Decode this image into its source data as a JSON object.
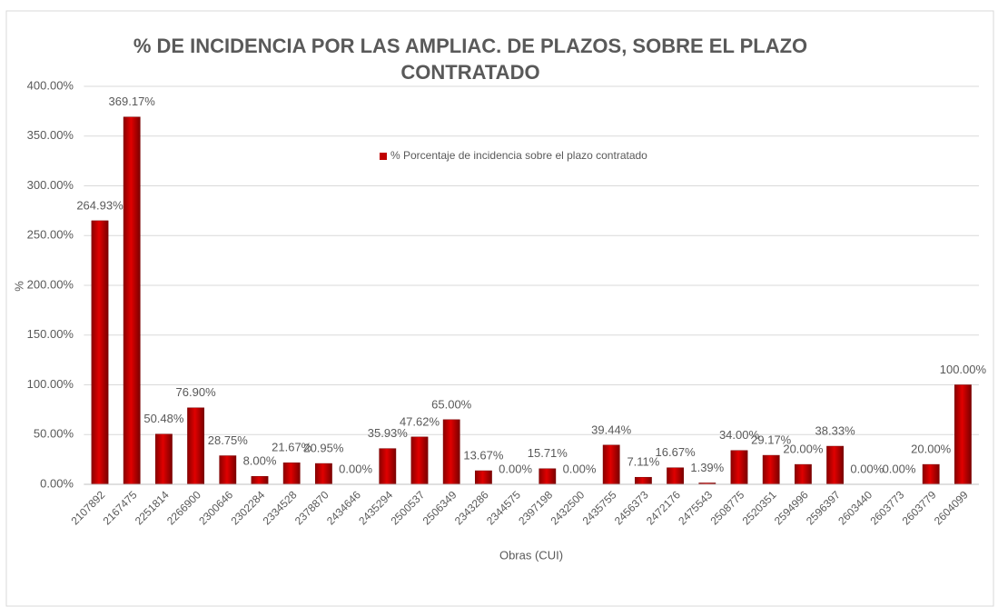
{
  "chart_data": {
    "type": "bar",
    "title": "% DE INCIDENCIA POR LAS AMPLIAC. DE PLAZOS, SOBRE EL PLAZO CONTRATADO",
    "x_axis_label": "Obras (CUI)",
    "y_axis_label": "%",
    "categories": [
      "2107892",
      "2167475",
      "2251814",
      "2266900",
      "2300646",
      "2302284",
      "2334528",
      "2378870",
      "2434646",
      "2435294",
      "2500537",
      "2506349",
      "2343286",
      "2344575",
      "2397198",
      "2432500",
      "2435755",
      "2456373",
      "2472176",
      "2475543",
      "2508775",
      "2520351",
      "2594996",
      "2596397",
      "2603440",
      "2603773",
      "2603779",
      "2604099"
    ],
    "series": [
      {
        "name": "% Porcentaje de incidencia sobre el plazo contratado",
        "color": "#c00000",
        "values": [
          264.93,
          369.17,
          50.48,
          76.9,
          28.75,
          8.0,
          21.67,
          20.95,
          0.0,
          35.93,
          47.62,
          65.0,
          13.67,
          0.0,
          15.71,
          0.0,
          39.44,
          7.11,
          16.67,
          1.39,
          34.0,
          29.17,
          20.0,
          38.33,
          0.0,
          0.0,
          20.0,
          100.0
        ],
        "value_labels": [
          "264.93%",
          "369.17%",
          "50.48%",
          "76.90%",
          "28.75%",
          "8.00%",
          "21.67%",
          "20.95%",
          "0.00%",
          "35.93%",
          "47.62%",
          "65.00%",
          "13.67%",
          "0.00%",
          "15.71%",
          "0.00%",
          "39.44%",
          "7.11%",
          "16.67%",
          "1.39%",
          "34.00%",
          "29.17%",
          "20.00%",
          "38.33%",
          "0.00%",
          "0.00%",
          "20.00%",
          "100.00%"
        ]
      }
    ],
    "ylim": [
      0,
      400
    ],
    "yticks": [
      {
        "value": 0,
        "label": "0.00%"
      },
      {
        "value": 50,
        "label": "50.00%"
      },
      {
        "value": 100,
        "label": "100.00%"
      },
      {
        "value": 150,
        "label": "150.00%"
      },
      {
        "value": 200,
        "label": "200.00%"
      },
      {
        "value": 250,
        "label": "250.00%"
      },
      {
        "value": 300,
        "label": "300.00%"
      },
      {
        "value": 350,
        "label": "350.00%"
      },
      {
        "value": 400,
        "label": "400.00%"
      }
    ],
    "grid": true,
    "legend": "top"
  }
}
